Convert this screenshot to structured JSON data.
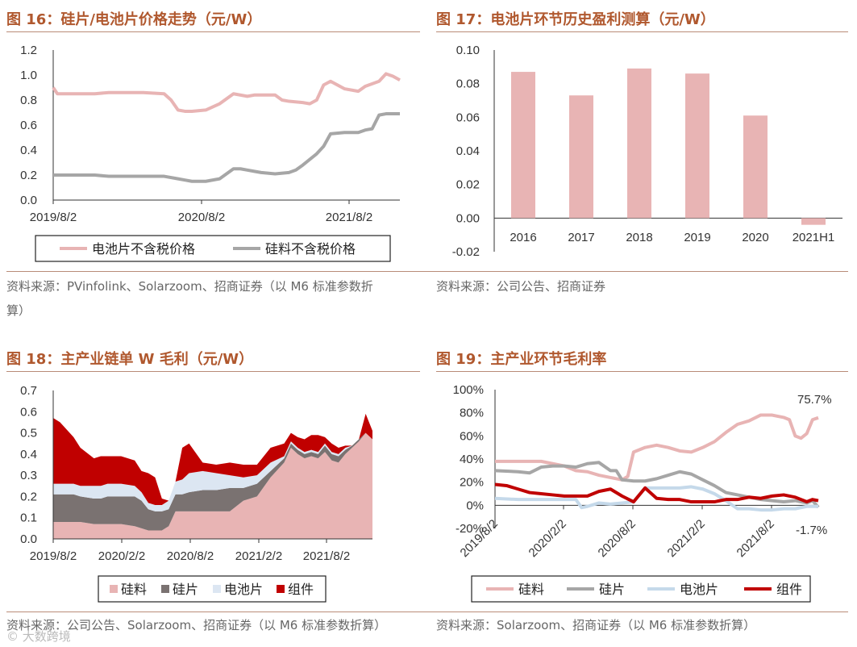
{
  "figures": {
    "fig16": {
      "title": "图 16：硅片/电池片价格走势（元/W）",
      "source": "资料来源：PVinfolink、Solarzoom、招商证券（以 M6 标准参数折",
      "source_cont": "算）"
    },
    "fig17": {
      "title": "图 17：电池片环节历史盈利测算（元/W）",
      "source": "资料来源：公司公告、招商证券"
    },
    "fig18": {
      "title": "图 18：主产业链单 W 毛利（元/W）",
      "source": "资料来源：公司公告、Solarzoom、招商证券（以 M6 标准参数折算）"
    },
    "fig19": {
      "title": "图 19：主产业环节毛利率",
      "source": "资料来源：Solarzoom、招商证券（以 M6 标准参数折算）"
    }
  },
  "watermark": "© 大数跨境",
  "colors": {
    "title": "#b0582e",
    "pink": "#e8b4b4",
    "gray": "#a6a6a6",
    "darkgray": "#7a7271",
    "lightblue": "#dce6f2",
    "darkred": "#c00000",
    "lightblue_line": "#c5d9ea"
  },
  "chart_data": [
    {
      "id": "fig16",
      "type": "line",
      "x_ticks": [
        "2019/8/2",
        "2020/8/2",
        "2021/8/2"
      ],
      "y_ticks": [
        "1.2",
        "1.0",
        "0.8",
        "0.6",
        "0.4",
        "0.2",
        "0.0"
      ],
      "ylim": [
        0,
        1.2
      ],
      "x_range": [
        0,
        25
      ],
      "series": [
        {
          "name": "电池片不含税价格",
          "color": "#e8b4b4",
          "x": [
            0,
            0.3,
            1.5,
            3,
            4,
            5,
            5.5,
            6,
            6.5,
            8,
            8.5,
            9,
            9.5,
            10,
            11,
            12,
            13,
            14,
            14.5,
            15,
            16,
            16.5,
            17,
            18,
            18.5,
            19,
            19.5,
            20,
            21,
            22,
            22.5,
            23,
            23.5,
            24,
            24.5,
            25
          ],
          "y": [
            0.9,
            0.85,
            0.85,
            0.85,
            0.86,
            0.86,
            0.86,
            0.86,
            0.86,
            0.85,
            0.8,
            0.72,
            0.71,
            0.71,
            0.72,
            0.77,
            0.85,
            0.83,
            0.84,
            0.84,
            0.84,
            0.8,
            0.79,
            0.78,
            0.77,
            0.8,
            0.92,
            0.95,
            0.89,
            0.87,
            0.91,
            0.93,
            0.95,
            1.01,
            0.99,
            0.96
          ]
        },
        {
          "name": "硅料不含税价格",
          "color": "#a6a6a6",
          "x": [
            0,
            3,
            4,
            5,
            6,
            6.5,
            7,
            8,
            9,
            9.5,
            10,
            10.5,
            11,
            12,
            13,
            13.5,
            14,
            14.5,
            15,
            16,
            17,
            17.5,
            18,
            19,
            19.5,
            20,
            21,
            22,
            22.5,
            23,
            23.5,
            24,
            25
          ],
          "y": [
            0.2,
            0.2,
            0.19,
            0.19,
            0.19,
            0.19,
            0.19,
            0.19,
            0.17,
            0.16,
            0.15,
            0.15,
            0.15,
            0.17,
            0.25,
            0.25,
            0.24,
            0.23,
            0.22,
            0.21,
            0.22,
            0.24,
            0.28,
            0.37,
            0.43,
            0.53,
            0.54,
            0.54,
            0.56,
            0.57,
            0.68,
            0.69,
            0.69
          ]
        }
      ],
      "legend": [
        "电池片不含税价格",
        "硅料不含税价格"
      ]
    },
    {
      "id": "fig17",
      "type": "bar",
      "categories": [
        "2016",
        "2017",
        "2018",
        "2019",
        "2020",
        "2021H1"
      ],
      "values": [
        0.087,
        0.073,
        0.089,
        0.086,
        0.061,
        -0.004
      ],
      "y_ticks": [
        "0.10",
        "0.08",
        "0.06",
        "0.04",
        "0.02",
        "0.00",
        "-0.02"
      ],
      "ylim": [
        -0.02,
        0.1
      ],
      "color": "#e8b4b4"
    },
    {
      "id": "fig18",
      "type": "area",
      "x_ticks": [
        "2019/8/2",
        "2020/2/2",
        "2020/8/2",
        "2021/2/2",
        "2021/8/2"
      ],
      "y_ticks": [
        "0.7",
        "0.6",
        "0.5",
        "0.4",
        "0.3",
        "0.2",
        "0.1",
        "0.0"
      ],
      "ylim": [
        0,
        0.7
      ],
      "x_range": [
        0,
        23.5
      ],
      "x": [
        0,
        0.5,
        1.5,
        2,
        3,
        3.5,
        4,
        5,
        6,
        6.5,
        7,
        7.5,
        8,
        8.5,
        9,
        9.5,
        10,
        11,
        12,
        13,
        14,
        15,
        16,
        17,
        17.5,
        18,
        18.5,
        19,
        19.5,
        20,
        20.5,
        21,
        21.5,
        22,
        22.5,
        23,
        23.5
      ],
      "series": [
        {
          "name": "硅料",
          "color": "#e8b4b4",
          "values": [
            0.08,
            0.08,
            0.08,
            0.08,
            0.07,
            0.07,
            0.07,
            0.07,
            0.06,
            0.05,
            0.04,
            0.04,
            0.04,
            0.06,
            0.13,
            0.13,
            0.13,
            0.13,
            0.13,
            0.13,
            0.18,
            0.2,
            0.29,
            0.36,
            0.43,
            0.4,
            0.38,
            0.39,
            0.38,
            0.41,
            0.37,
            0.36,
            0.4,
            0.43,
            0.46,
            0.5,
            0.47
          ]
        },
        {
          "name": "硅片",
          "color": "#7a7271",
          "values": [
            0.13,
            0.13,
            0.13,
            0.12,
            0.12,
            0.12,
            0.13,
            0.13,
            0.14,
            0.13,
            0.1,
            0.09,
            0.09,
            0.08,
            0.08,
            0.08,
            0.09,
            0.1,
            0.1,
            0.11,
            0.06,
            0.06,
            0.03,
            0.02,
            0.02,
            0.02,
            0.02,
            0.02,
            0.02,
            0.03,
            0.03,
            0.03,
            0.02,
            0.01,
            0.01,
            0.0,
            0.0
          ]
        },
        {
          "name": "电池片",
          "color": "#dce6f2",
          "values": [
            0.05,
            0.05,
            0.05,
            0.05,
            0.06,
            0.06,
            0.06,
            0.06,
            0.05,
            0.04,
            0.03,
            0.03,
            0.03,
            0.04,
            0.06,
            0.07,
            0.09,
            0.09,
            0.08,
            0.06,
            0.05,
            0.04,
            0.04,
            0.01,
            0.01,
            0.01,
            0.01,
            0.01,
            0.01,
            0.01,
            0.01,
            0.01,
            0.01,
            0.0,
            0.0,
            0.0,
            0.0
          ]
        },
        {
          "name": "组件",
          "color": "#c00000",
          "values": [
            0.31,
            0.29,
            0.22,
            0.18,
            0.13,
            0.14,
            0.13,
            0.13,
            0.12,
            0.1,
            0.14,
            0.13,
            0.03,
            0.0,
            0.0,
            0.15,
            0.14,
            0.04,
            0.04,
            0.06,
            0.06,
            0.05,
            0.07,
            0.06,
            0.04,
            0.05,
            0.06,
            0.07,
            0.08,
            0.03,
            0.04,
            0.03,
            0.01,
            0.0,
            0.0,
            0.09,
            0.04
          ]
        }
      ],
      "legend": [
        "硅料",
        "硅片",
        "电池片",
        "组件"
      ]
    },
    {
      "id": "fig19",
      "type": "line",
      "x_ticks": [
        "2019/8/2",
        "2020/2/2",
        "2020/8/2",
        "2021/2/2",
        "2021/8/2"
      ],
      "y_ticks": [
        "100%",
        "80%",
        "60%",
        "40%",
        "20%",
        "0%",
        "-20%"
      ],
      "ylim": [
        -20,
        100
      ],
      "x_range": [
        0,
        28
      ],
      "annotations": [
        "75.7%",
        "-1.7%"
      ],
      "series": [
        {
          "name": "硅料",
          "color": "#e8b4b4",
          "x": [
            0,
            2,
            4,
            6,
            7,
            8,
            9,
            10,
            11,
            11.5,
            12,
            13,
            14,
            15,
            16,
            17,
            18,
            19,
            20,
            21,
            22,
            23,
            24,
            25,
            25.5,
            26,
            26.5,
            27,
            27.5,
            28
          ],
          "y": [
            38,
            38,
            38,
            34,
            30,
            29,
            26,
            24,
            22,
            25,
            46,
            50,
            52,
            50,
            47,
            46,
            50,
            55,
            63,
            70,
            73,
            78,
            78,
            76,
            74,
            60,
            58,
            62,
            74,
            75.7
          ]
        },
        {
          "name": "硅片",
          "color": "#a6a6a6",
          "x": [
            0,
            2,
            3,
            4,
            5,
            6,
            7,
            8,
            9,
            10,
            10.5,
            11,
            12,
            13,
            14,
            15,
            16,
            17,
            18,
            19,
            20,
            21,
            22,
            23,
            24,
            25,
            26,
            27,
            27.5,
            28
          ],
          "y": [
            30,
            29,
            28,
            33,
            34,
            34,
            33,
            36,
            37,
            30,
            30,
            22,
            21,
            21,
            23,
            26,
            29,
            27,
            22,
            17,
            11,
            9,
            7,
            5,
            4,
            3,
            4,
            2,
            4,
            -1.7
          ]
        },
        {
          "name": "电池片",
          "color": "#c5d9ea",
          "x": [
            0,
            2,
            3,
            4,
            5,
            6,
            7,
            7.5,
            8,
            9,
            10,
            11,
            12,
            13,
            14,
            15,
            16,
            17,
            18,
            19,
            20,
            21,
            22,
            23,
            24,
            25,
            26,
            27,
            28
          ],
          "y": [
            6,
            5,
            5,
            5,
            5,
            5,
            5,
            -2,
            -1,
            2,
            1,
            2,
            3,
            15,
            15,
            15,
            15,
            16,
            14,
            10,
            4,
            -3,
            -3,
            -4,
            -4,
            -3,
            -3,
            -1,
            -1
          ]
        },
        {
          "name": "组件",
          "color": "#c00000",
          "x": [
            0,
            1,
            2,
            3,
            4,
            5,
            6,
            7,
            8,
            9,
            10,
            11,
            12,
            13,
            14,
            15,
            16,
            17,
            18,
            19,
            20,
            21,
            22,
            23,
            24,
            25,
            26,
            27,
            27.5,
            28
          ],
          "y": [
            18,
            17,
            14,
            11,
            10,
            9,
            8,
            8,
            8,
            12,
            14,
            8,
            3,
            15,
            6,
            5,
            5,
            3,
            3,
            3,
            5,
            5,
            7,
            6,
            8,
            9,
            7,
            3,
            5,
            4
          ]
        }
      ],
      "legend": [
        "硅料",
        "硅片",
        "电池片",
        "组件"
      ]
    }
  ]
}
